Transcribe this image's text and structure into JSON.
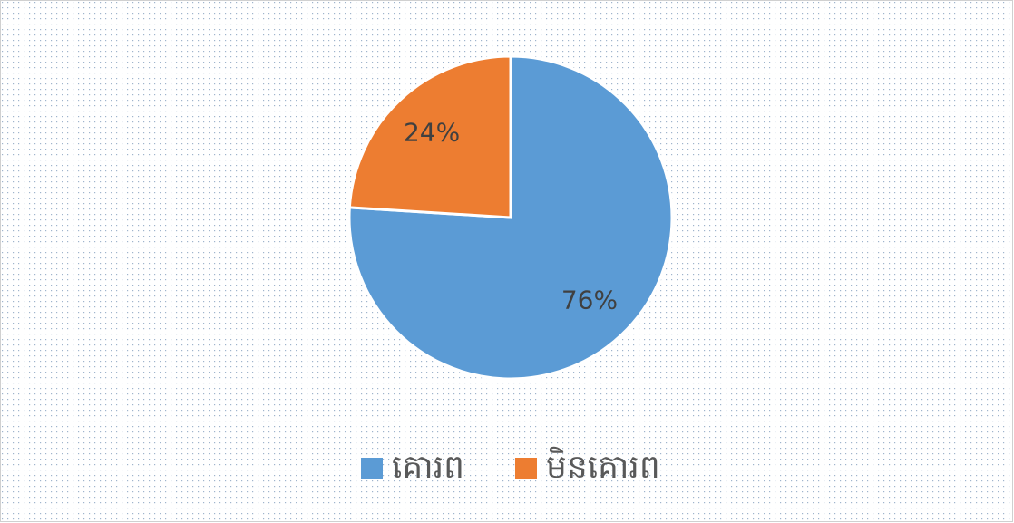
{
  "chart_data": {
    "type": "pie",
    "categories": [
      "គោរព",
      "មិនគោរព"
    ],
    "values": [
      76,
      24
    ],
    "value_labels": [
      "76%",
      "24%"
    ],
    "colors": [
      "#5b9bd5",
      "#ed7d31"
    ],
    "legend": "bottom"
  }
}
